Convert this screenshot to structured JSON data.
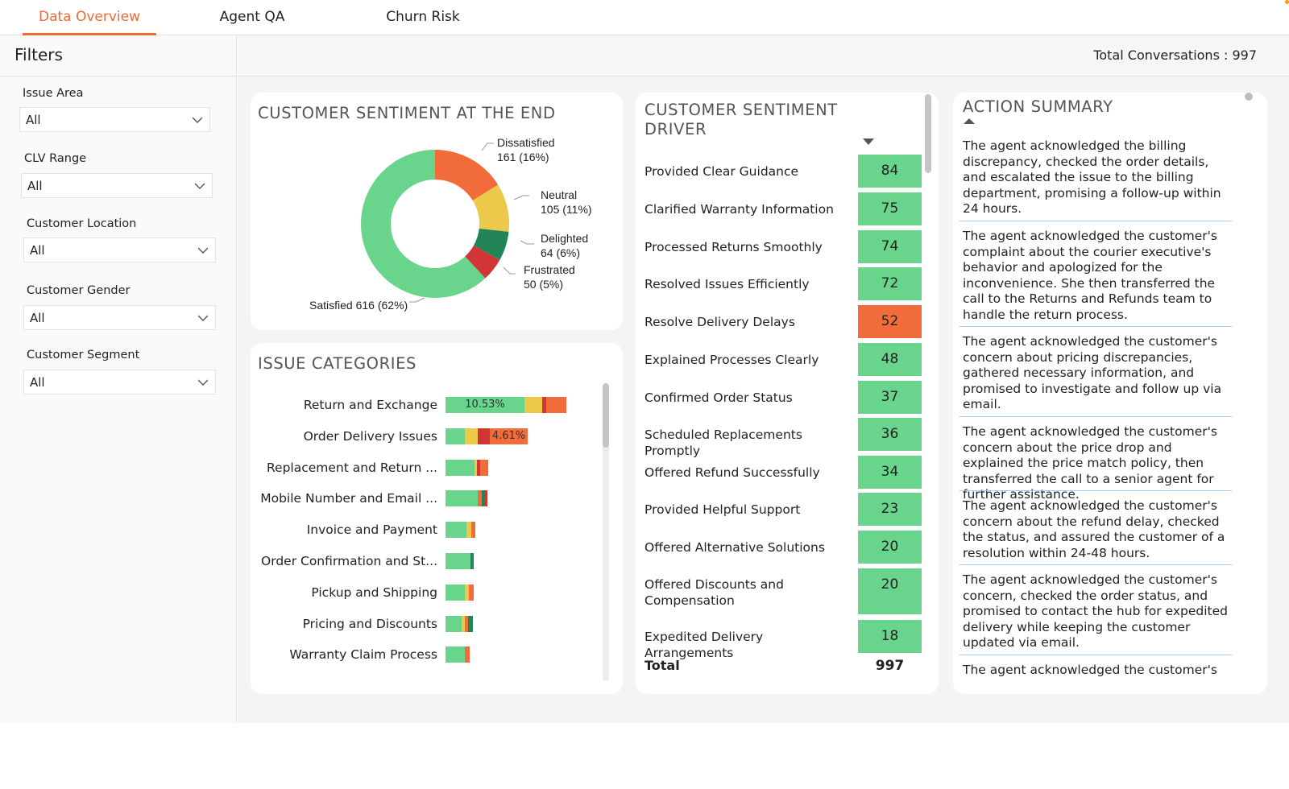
{
  "tabs": [
    {
      "label": "Data Overview",
      "active": true
    },
    {
      "label": "Agent QA",
      "active": false
    },
    {
      "label": "Churn Risk",
      "active": false
    }
  ],
  "sidebar": {
    "title": "Filters",
    "filters": [
      {
        "label": "Issue Area",
        "value": "All"
      },
      {
        "label": "CLV Range",
        "value": "All"
      },
      {
        "label": "Customer Location",
        "value": "All"
      },
      {
        "label": "Customer Gender",
        "value": "All"
      },
      {
        "label": "Customer Segment",
        "value": "All"
      }
    ]
  },
  "header": {
    "total_conversations": "Total Conversations : 997"
  },
  "sentiment_chart": {
    "title": "CUSTOMER SENTIMENT AT THE END",
    "chart_data": {
      "type": "pie",
      "donut": true,
      "slices": [
        {
          "name": "Dissatisfied",
          "value": 161,
          "label": "161 (16%)",
          "color": "#f26b3a"
        },
        {
          "name": "Neutral",
          "value": 105,
          "label": "105 (11%)",
          "color": "#ecc94b"
        },
        {
          "name": "Delighted",
          "value": 64,
          "label": "64 (6%)",
          "color": "#218558"
        },
        {
          "name": "Frustrated",
          "value": 50,
          "label": "50 (5%)",
          "color": "#d23535"
        },
        {
          "name": "Satisfied",
          "value": 616,
          "label": "Satisfied 616 (62%)",
          "color": "#68d48c"
        }
      ]
    }
  },
  "issue_categories": {
    "title": "ISSUE CATEGORIES",
    "colors": {
      "satisfied": "#68d48c",
      "neutral": "#ecc94b",
      "frustrated": "#d23535",
      "dissatisfied": "#f26b3a",
      "delighted": "#218558"
    },
    "rows": [
      {
        "label": "Return and Exchange",
        "segments": [
          {
            "s": "satisfied",
            "w": 98,
            "text": "10.53%"
          },
          {
            "s": "neutral",
            "w": 22
          },
          {
            "s": "frustrated",
            "w": 5
          },
          {
            "s": "dissatisfied",
            "w": 25
          }
        ]
      },
      {
        "label": "Order Delivery Issues",
        "segments": [
          {
            "s": "satisfied",
            "w": 24
          },
          {
            "s": "neutral",
            "w": 16
          },
          {
            "s": "frustrated",
            "w": 15
          },
          {
            "s": "dissatisfied",
            "w": 47,
            "text": "4.61%"
          }
        ]
      },
      {
        "label": "Replacement and Return ...",
        "segments": [
          {
            "s": "satisfied",
            "w": 36
          },
          {
            "s": "neutral",
            "w": 3
          },
          {
            "s": "frustrated",
            "w": 4
          },
          {
            "s": "dissatisfied",
            "w": 10
          }
        ]
      },
      {
        "label": "Mobile Number and Email ...",
        "segments": [
          {
            "s": "satisfied",
            "w": 40
          },
          {
            "s": "dissatisfied",
            "w": 5
          },
          {
            "s": "delighted",
            "w": 4
          },
          {
            "s": "frustrated",
            "w": 3
          }
        ]
      },
      {
        "label": "Invoice and Payment",
        "segments": [
          {
            "s": "satisfied",
            "w": 26
          },
          {
            "s": "neutral",
            "w": 6
          },
          {
            "s": "dissatisfied",
            "w": 5
          }
        ]
      },
      {
        "label": "Order Confirmation and St...",
        "segments": [
          {
            "s": "satisfied",
            "w": 31
          },
          {
            "s": "delighted",
            "w": 4
          }
        ]
      },
      {
        "label": "Pickup and Shipping",
        "segments": [
          {
            "s": "satisfied",
            "w": 24
          },
          {
            "s": "neutral",
            "w": 5
          },
          {
            "s": "dissatisfied",
            "w": 6
          }
        ]
      },
      {
        "label": "Pricing and Discounts",
        "segments": [
          {
            "s": "satisfied",
            "w": 20
          },
          {
            "s": "neutral",
            "w": 4
          },
          {
            "s": "dissatisfied",
            "w": 4
          },
          {
            "s": "delighted",
            "w": 6
          }
        ]
      },
      {
        "label": "Warranty Claim Process",
        "segments": [
          {
            "s": "satisfied",
            "w": 24
          },
          {
            "s": "dissatisfied",
            "w": 6
          }
        ]
      }
    ]
  },
  "sentiment_driver": {
    "title_line1": "CUSTOMER SENTIMENT",
    "title_line2": "DRIVER",
    "green": "#68d48c",
    "orange": "#f26b3a",
    "rows": [
      {
        "label": "Provided Clear Guidance",
        "value": "84",
        "color": "green"
      },
      {
        "label": "Clarified Warranty Information",
        "value": "75",
        "color": "green"
      },
      {
        "label": "Processed Returns Smoothly",
        "value": "74",
        "color": "green"
      },
      {
        "label": "Resolved Issues Efficiently",
        "value": "72",
        "color": "green"
      },
      {
        "label": "Resolve Delivery Delays",
        "value": "52",
        "color": "orange"
      },
      {
        "label": "Explained Processes Clearly",
        "value": "48",
        "color": "green"
      },
      {
        "label": "Confirmed Order Status",
        "value": "37",
        "color": "green"
      },
      {
        "label": "Scheduled Replacements Promptly",
        "value": "36",
        "color": "green"
      },
      {
        "label": "Offered Refund Successfully",
        "value": "34",
        "color": "green"
      },
      {
        "label": "Provided Helpful Support",
        "value": "23",
        "color": "green"
      },
      {
        "label": "Offered Alternative Solutions",
        "value": "20",
        "color": "green"
      },
      {
        "label": "Offered Discounts and Compensation",
        "value": "20",
        "color": "green"
      },
      {
        "label": "Expedited Delivery Arrangements",
        "value": "18",
        "color": "green"
      }
    ],
    "total_label": "Total",
    "total_value": "997"
  },
  "action_summary": {
    "title": "ACTION SUMMARY",
    "items": [
      "The agent acknowledged the billing discrepancy, checked the order details, and escalated the issue to the billing department, promising a follow-up within 24 hours.",
      "The agent acknowledged the customer's complaint about the courier executive's behavior and apologized for the inconvenience. She then transferred the call to the Returns and Refunds team to handle the return process.",
      "The agent acknowledged the customer's concern about pricing discrepancies, gathered necessary information, and promised to investigate and follow up via email.",
      "The agent acknowledged the customer's concern about the price drop and explained the price match policy, then transferred the call to a senior agent for further assistance.",
      "The agent acknowledged the customer's concern about the refund delay, checked the status, and assured the customer of a resolution within 24-48 hours.",
      "The agent acknowledged the customer's concern, checked the order status, and promised to contact the hub for expedited delivery while keeping the customer updated via email.",
      "The agent acknowledged the customer's"
    ]
  }
}
